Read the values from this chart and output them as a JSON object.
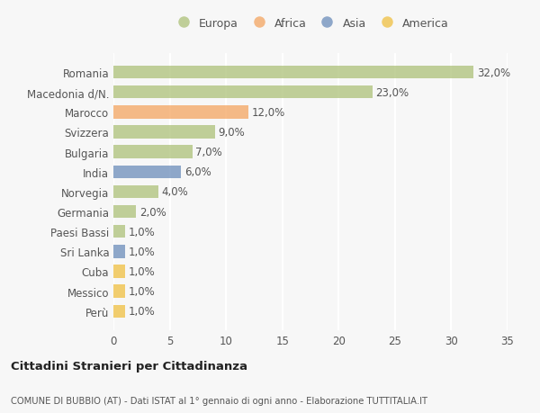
{
  "categories": [
    "Romania",
    "Macedonia d/N.",
    "Marocco",
    "Svizzera",
    "Bulgaria",
    "India",
    "Norvegia",
    "Germania",
    "Paesi Bassi",
    "Sri Lanka",
    "Cuba",
    "Messico",
    "Perù"
  ],
  "values": [
    32.0,
    23.0,
    12.0,
    9.0,
    7.0,
    6.0,
    4.0,
    2.0,
    1.0,
    1.0,
    1.0,
    1.0,
    1.0
  ],
  "continents": [
    "Europa",
    "Europa",
    "Africa",
    "Europa",
    "Europa",
    "Asia",
    "Europa",
    "Europa",
    "Europa",
    "Asia",
    "America",
    "America",
    "America"
  ],
  "colors": {
    "Europa": "#adc178",
    "Africa": "#f4a460",
    "Asia": "#6b8cba",
    "America": "#f0c040"
  },
  "bar_alpha": 0.75,
  "legend_order": [
    "Europa",
    "Africa",
    "Asia",
    "America"
  ],
  "title1": "Cittadini Stranieri per Cittadinanza",
  "title2": "COMUNE DI BUBBIO (AT) - Dati ISTAT al 1° gennaio di ogni anno - Elaborazione TUTTITALIA.IT",
  "xlim": [
    0,
    35
  ],
  "xticks": [
    0,
    5,
    10,
    15,
    20,
    25,
    30,
    35
  ],
  "bg_color": "#f7f7f7",
  "grid_color": "#ffffff",
  "label_fontsize": 8.5,
  "bar_label_fontsize": 8.5
}
